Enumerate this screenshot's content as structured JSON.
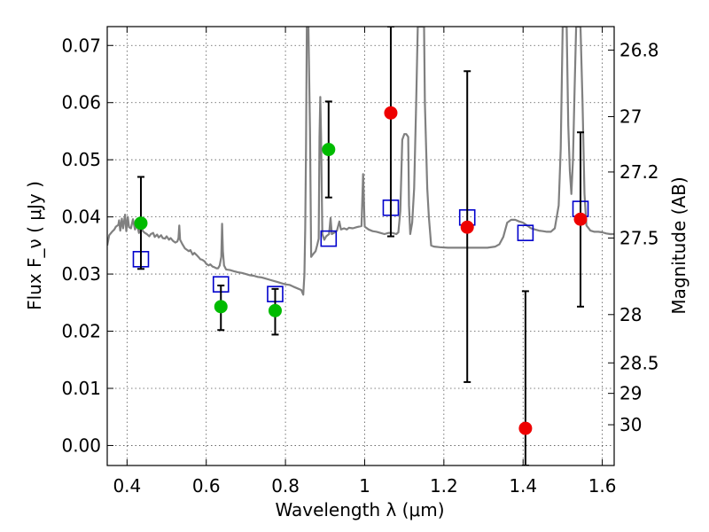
{
  "chart_data": {
    "type": "scatter",
    "xlabel": "Wavelength  λ (μm)",
    "ylabel": "Flux  F_ν  ( μJy )",
    "ylabel_right": "Magnitude (AB)",
    "xlim": [
      0.35,
      1.63
    ],
    "ylim": [
      -0.0035,
      0.0733
    ],
    "grid": true,
    "x_ticks": [
      {
        "value": 0.4,
        "label": "0.4"
      },
      {
        "value": 0.6,
        "label": "0.6"
      },
      {
        "value": 0.8,
        "label": "0.8"
      },
      {
        "value": 1.0,
        "label": "1"
      },
      {
        "value": 1.2,
        "label": "1.2"
      },
      {
        "value": 1.4,
        "label": "1.4"
      },
      {
        "value": 1.6,
        "label": "1.6"
      }
    ],
    "y_ticks": [
      {
        "value": 0.0,
        "label": "0.00"
      },
      {
        "value": 0.01,
        "label": "0.01"
      },
      {
        "value": 0.02,
        "label": "0.02"
      },
      {
        "value": 0.03,
        "label": "0.03"
      },
      {
        "value": 0.04,
        "label": "0.04"
      },
      {
        "value": 0.05,
        "label": "0.05"
      },
      {
        "value": 0.06,
        "label": "0.06"
      },
      {
        "value": 0.07,
        "label": "0.07"
      }
    ],
    "mag_ticks": [
      {
        "value": 26.8,
        "label": "26.8"
      },
      {
        "value": 27.0,
        "label": "27"
      },
      {
        "value": 27.2,
        "label": "27.2"
      },
      {
        "value": 27.5,
        "label": "27.5"
      },
      {
        "value": 28.0,
        "label": "28"
      },
      {
        "value": 28.5,
        "label": "28.5"
      },
      {
        "value": 29.0,
        "label": "29"
      },
      {
        "value": 30.0,
        "label": "30"
      }
    ],
    "colors": {
      "model": "#808080",
      "optical": "#00bb00",
      "nir": "#ee0000",
      "model_photometry": "#0000cc",
      "error_bar": "#000000"
    },
    "series": [
      {
        "role": "model_spectrum",
        "style": "line",
        "color": "#808080",
        "points": [
          [
            0.35,
            0.035
          ],
          [
            0.355,
            0.0368
          ],
          [
            0.362,
            0.0374
          ],
          [
            0.368,
            0.0378
          ],
          [
            0.372,
            0.0383
          ],
          [
            0.378,
            0.0386
          ],
          [
            0.38,
            0.0394
          ],
          [
            0.383,
            0.0376
          ],
          [
            0.387,
            0.0397
          ],
          [
            0.39,
            0.038
          ],
          [
            0.395,
            0.0404
          ],
          [
            0.398,
            0.0375
          ],
          [
            0.402,
            0.04
          ],
          [
            0.405,
            0.0382
          ],
          [
            0.41,
            0.038
          ],
          [
            0.415,
            0.0396
          ],
          [
            0.42,
            0.0378
          ],
          [
            0.425,
            0.0387
          ],
          [
            0.43,
            0.0372
          ],
          [
            0.436,
            0.0385
          ],
          [
            0.44,
            0.0375
          ],
          [
            0.445,
            0.0372
          ],
          [
            0.45,
            0.037
          ],
          [
            0.456,
            0.0366
          ],
          [
            0.46,
            0.037
          ],
          [
            0.466,
            0.0372
          ],
          [
            0.47,
            0.0365
          ],
          [
            0.476,
            0.0369
          ],
          [
            0.48,
            0.0364
          ],
          [
            0.486,
            0.0368
          ],
          [
            0.49,
            0.0363
          ],
          [
            0.496,
            0.0362
          ],
          [
            0.5,
            0.0366
          ],
          [
            0.506,
            0.036
          ],
          [
            0.51,
            0.0363
          ],
          [
            0.516,
            0.0358
          ],
          [
            0.522,
            0.0355
          ],
          [
            0.527,
            0.0357
          ],
          [
            0.53,
            0.0363
          ],
          [
            0.532,
            0.0385
          ],
          [
            0.534,
            0.036
          ],
          [
            0.54,
            0.0352
          ],
          [
            0.546,
            0.0345
          ],
          [
            0.55,
            0.0343
          ],
          [
            0.556,
            0.034
          ],
          [
            0.56,
            0.0342
          ],
          [
            0.566,
            0.0334
          ],
          [
            0.57,
            0.0337
          ],
          [
            0.576,
            0.0333
          ],
          [
            0.58,
            0.033
          ],
          [
            0.585,
            0.0326
          ],
          [
            0.59,
            0.0325
          ],
          [
            0.596,
            0.0322
          ],
          [
            0.6,
            0.0318
          ],
          [
            0.606,
            0.0315
          ],
          [
            0.61,
            0.0317
          ],
          [
            0.616,
            0.0313
          ],
          [
            0.62,
            0.0312
          ],
          [
            0.626,
            0.031
          ],
          [
            0.63,
            0.031
          ],
          [
            0.634,
            0.0315
          ],
          [
            0.638,
            0.033
          ],
          [
            0.64,
            0.0388
          ],
          [
            0.642,
            0.034
          ],
          [
            0.645,
            0.0315
          ],
          [
            0.65,
            0.0308
          ],
          [
            0.66,
            0.0307
          ],
          [
            0.67,
            0.0305
          ],
          [
            0.68,
            0.0303
          ],
          [
            0.69,
            0.0302
          ],
          [
            0.7,
            0.03
          ],
          [
            0.71,
            0.0298
          ],
          [
            0.72,
            0.0297
          ],
          [
            0.73,
            0.0295
          ],
          [
            0.74,
            0.0294
          ],
          [
            0.75,
            0.0292
          ],
          [
            0.76,
            0.029
          ],
          [
            0.77,
            0.0288
          ],
          [
            0.78,
            0.0286
          ],
          [
            0.79,
            0.0284
          ],
          [
            0.8,
            0.0282
          ],
          [
            0.81,
            0.0281
          ],
          [
            0.82,
            0.0278
          ],
          [
            0.83,
            0.0275
          ],
          [
            0.84,
            0.0272
          ],
          [
            0.845,
            0.0264
          ],
          [
            0.848,
            0.03
          ],
          [
            0.85,
            0.038
          ],
          [
            0.852,
            0.052
          ],
          [
            0.854,
            0.0733
          ],
          [
            0.858,
            0.0733
          ],
          [
            0.862,
            0.055
          ],
          [
            0.865,
            0.033
          ],
          [
            0.87,
            0.0335
          ],
          [
            0.876,
            0.034
          ],
          [
            0.88,
            0.035
          ],
          [
            0.884,
            0.0362
          ],
          [
            0.886,
            0.054
          ],
          [
            0.888,
            0.061
          ],
          [
            0.89,
            0.054
          ],
          [
            0.893,
            0.037
          ],
          [
            0.898,
            0.036
          ],
          [
            0.903,
            0.0366
          ],
          [
            0.91,
            0.037
          ],
          [
            0.914,
            0.0398
          ],
          [
            0.917,
            0.037
          ],
          [
            0.922,
            0.0372
          ],
          [
            0.93,
            0.0376
          ],
          [
            0.936,
            0.0392
          ],
          [
            0.94,
            0.0378
          ],
          [
            0.948,
            0.038
          ],
          [
            0.955,
            0.0378
          ],
          [
            0.96,
            0.0381
          ],
          [
            0.97,
            0.038
          ],
          [
            0.98,
            0.0382
          ],
          [
            0.992,
            0.0384
          ],
          [
            0.996,
            0.0475
          ],
          [
            0.998,
            0.043
          ],
          [
            1.0,
            0.0383
          ],
          [
            1.01,
            0.0378
          ],
          [
            1.02,
            0.0375
          ],
          [
            1.03,
            0.0374
          ],
          [
            1.04,
            0.0372
          ],
          [
            1.05,
            0.037
          ],
          [
            1.06,
            0.0372
          ],
          [
            1.07,
            0.0372
          ],
          [
            1.08,
            0.037
          ],
          [
            1.085,
            0.0373
          ],
          [
            1.088,
            0.0395
          ],
          [
            1.09,
            0.041
          ],
          [
            1.095,
            0.0535
          ],
          [
            1.1,
            0.0545
          ],
          [
            1.105,
            0.0545
          ],
          [
            1.11,
            0.054
          ],
          [
            1.112,
            0.042
          ],
          [
            1.115,
            0.037
          ],
          [
            1.12,
            0.039
          ],
          [
            1.125,
            0.045
          ],
          [
            1.13,
            0.06
          ],
          [
            1.134,
            0.0733
          ],
          [
            1.15,
            0.0733
          ],
          [
            1.152,
            0.06
          ],
          [
            1.158,
            0.045
          ],
          [
            1.162,
            0.04
          ],
          [
            1.168,
            0.035
          ],
          [
            1.175,
            0.0348
          ],
          [
            1.19,
            0.0347
          ],
          [
            1.21,
            0.0346
          ],
          [
            1.23,
            0.0346
          ],
          [
            1.25,
            0.0346
          ],
          [
            1.27,
            0.0346
          ],
          [
            1.29,
            0.0346
          ],
          [
            1.31,
            0.0346
          ],
          [
            1.33,
            0.0348
          ],
          [
            1.34,
            0.0352
          ],
          [
            1.35,
            0.0365
          ],
          [
            1.36,
            0.039
          ],
          [
            1.37,
            0.0395
          ],
          [
            1.38,
            0.0395
          ],
          [
            1.39,
            0.0392
          ],
          [
            1.4,
            0.039
          ],
          [
            1.41,
            0.0385
          ],
          [
            1.42,
            0.038
          ],
          [
            1.43,
            0.0378
          ],
          [
            1.44,
            0.0376
          ],
          [
            1.45,
            0.0375
          ],
          [
            1.46,
            0.0374
          ],
          [
            1.47,
            0.0374
          ],
          [
            1.48,
            0.038
          ],
          [
            1.49,
            0.042
          ],
          [
            1.495,
            0.052
          ],
          [
            1.5,
            0.0733
          ],
          [
            1.51,
            0.0733
          ],
          [
            1.514,
            0.056
          ],
          [
            1.518,
            0.048
          ],
          [
            1.522,
            0.044
          ],
          [
            1.526,
            0.05
          ],
          [
            1.53,
            0.062
          ],
          [
            1.534,
            0.0733
          ],
          [
            1.545,
            0.0733
          ],
          [
            1.55,
            0.06
          ],
          [
            1.555,
            0.044
          ],
          [
            1.56,
            0.0385
          ],
          [
            1.57,
            0.0376
          ],
          [
            1.58,
            0.0374
          ],
          [
            1.59,
            0.0374
          ],
          [
            1.6,
            0.0373
          ],
          [
            1.61,
            0.0371
          ],
          [
            1.62,
            0.037
          ],
          [
            1.63,
            0.037
          ]
        ]
      },
      {
        "role": "optical_photometry",
        "style": "marker",
        "color": "#00bb00",
        "points": [
          {
            "x": 0.435,
            "y": 0.0389,
            "err_low": 0.0309,
            "err_high": 0.047
          },
          {
            "x": 0.637,
            "y": 0.0243,
            "err_low": 0.0202,
            "err_high": 0.028
          },
          {
            "x": 0.774,
            "y": 0.0236,
            "err_low": 0.0194,
            "err_high": 0.0274
          },
          {
            "x": 0.909,
            "y": 0.0518,
            "err_low": 0.0434,
            "err_high": 0.0602
          }
        ]
      },
      {
        "role": "nir_photometry",
        "style": "marker",
        "color": "#ee0000",
        "points": [
          {
            "x": 1.066,
            "y": 0.0582,
            "err_low": 0.0366,
            "err_high": 0.0733
          },
          {
            "x": 1.259,
            "y": 0.0382,
            "err_low": 0.0111,
            "err_high": 0.0655
          },
          {
            "x": 1.406,
            "y": 0.003,
            "err_low": -0.0035,
            "err_high": 0.027
          },
          {
            "x": 1.545,
            "y": 0.0396,
            "err_low": 0.0243,
            "err_high": 0.0548
          }
        ]
      },
      {
        "role": "model_photometry",
        "style": "open-square",
        "color": "#0000cc",
        "points": [
          {
            "x": 0.435,
            "y": 0.0326
          },
          {
            "x": 0.637,
            "y": 0.0282
          },
          {
            "x": 0.774,
            "y": 0.0265
          },
          {
            "x": 0.909,
            "y": 0.0362
          },
          {
            "x": 1.066,
            "y": 0.0416
          },
          {
            "x": 1.259,
            "y": 0.0399
          },
          {
            "x": 1.406,
            "y": 0.0372
          },
          {
            "x": 1.545,
            "y": 0.0414
          }
        ]
      }
    ]
  }
}
